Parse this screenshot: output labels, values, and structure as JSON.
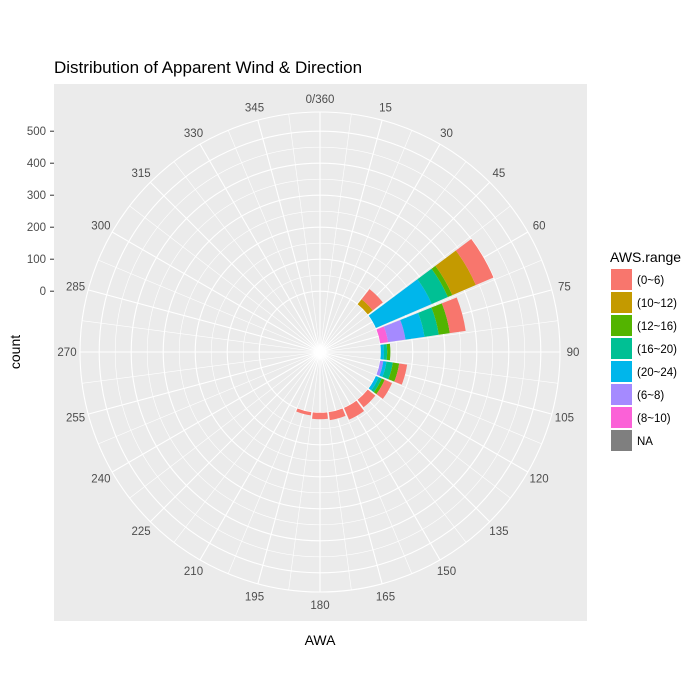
{
  "chart_data": {
    "type": "polar-stacked-bar",
    "title": "Distribution of Apparent Wind & Direction",
    "xlabel": "AWA",
    "ylabel": "count",
    "y_ticks": [
      0,
      100,
      200,
      300,
      400,
      500
    ],
    "ylim": [
      -190,
      560
    ],
    "angle_ticks": [
      "0/360",
      "15",
      "30",
      "45",
      "60",
      "75",
      "90",
      "105",
      "120",
      "135",
      "150",
      "165",
      "180",
      "195",
      "210",
      "225",
      "240",
      "255",
      "270",
      "285",
      "300",
      "315",
      "330",
      "345"
    ],
    "legend": {
      "title": "AWS.range",
      "entries": [
        {
          "label": "(0~6)",
          "color": "#F8766D"
        },
        {
          "label": "(10~12)",
          "color": "#C49A00"
        },
        {
          "label": "(12~16)",
          "color": "#53B400"
        },
        {
          "label": "(16~20)",
          "color": "#00C094"
        },
        {
          "label": "(20~24)",
          "color": "#00B6EB"
        },
        {
          "label": "(6~8)",
          "color": "#A58AFF"
        },
        {
          "label": "(8~10)",
          "color": "#FB61D7"
        },
        {
          "label": "NA",
          "color": "#7F7F7F"
        }
      ]
    },
    "stack_order": [
      "(0~6)",
      "(10~12)",
      "(12~16)",
      "(16~20)",
      "(20~24)",
      "(6~8)",
      "(8~10)",
      "NA"
    ],
    "bins": [
      {
        "angle": 45,
        "counts": {
          "(20~24)": 0,
          "(16~20)": 0,
          "(12~16)": 0,
          "(10~12)": 20,
          "(8~10)": 0,
          "(6~8)": 0,
          "(0~6)": 40
        }
      },
      {
        "angle": 60,
        "counts": {
          "(20~24)": 190,
          "(16~20)": 55,
          "(12~16)": 15,
          "(10~12)": 80,
          "(8~10)": 0,
          "(6~8)": 0,
          "(0~6)": 60
        }
      },
      {
        "angle": 75,
        "counts": {
          "(20~24)": 60,
          "(16~20)": 45,
          "(12~16)": 35,
          "(10~12)": 0,
          "(8~10)": 25,
          "(6~8)": 55,
          "(0~6)": 50
        }
      },
      {
        "angle": 90,
        "counts": {
          "(20~24)": 10,
          "(16~20)": 10,
          "(12~16)": 10,
          "(10~12)": 0,
          "(8~10)": 0,
          "(6~8)": 0,
          "(0~6)": 0
        }
      },
      {
        "angle": 105,
        "counts": {
          "(20~24)": 10,
          "(16~20)": 20,
          "(12~16)": 20,
          "(10~12)": 0,
          "(8~10)": 0,
          "(6~8)": 10,
          "(0~6)": 25
        }
      },
      {
        "angle": 120,
        "counts": {
          "(20~24)": 10,
          "(16~20)": 10,
          "(12~16)": 10,
          "(10~12)": 0,
          "(8~10)": 0,
          "(6~8)": 0,
          "(0~6)": 25
        }
      },
      {
        "angle": 135,
        "counts": {
          "(20~24)": 0,
          "(16~20)": 0,
          "(12~16)": 0,
          "(10~12)": 0,
          "(8~10)": 0,
          "(6~8)": 0,
          "(0~6)": 30
        }
      },
      {
        "angle": 150,
        "counts": {
          "(20~24)": 0,
          "(16~20)": 0,
          "(12~16)": 0,
          "(10~12)": 0,
          "(8~10)": 0,
          "(6~8)": 0,
          "(0~6)": 40
        }
      },
      {
        "angle": 165,
        "counts": {
          "(20~24)": 0,
          "(16~20)": 0,
          "(12~16)": 0,
          "(10~12)": 0,
          "(8~10)": 0,
          "(6~8)": 0,
          "(0~6)": 25
        }
      },
      {
        "angle": 180,
        "counts": {
          "(20~24)": 0,
          "(16~20)": 0,
          "(12~16)": 0,
          "(10~12)": 0,
          "(8~10)": 0,
          "(6~8)": 0,
          "(0~6)": 20
        }
      },
      {
        "angle": 195,
        "counts": {
          "(20~24)": 0,
          "(16~20)": 0,
          "(12~16)": 0,
          "(10~12)": 0,
          "(8~10)": 0,
          "(6~8)": 0,
          "(0~6)": 10
        }
      }
    ],
    "panel_background": "#EBEBEB",
    "grid_color": "#FFFFFF",
    "grid": true,
    "legend_position": "right"
  }
}
